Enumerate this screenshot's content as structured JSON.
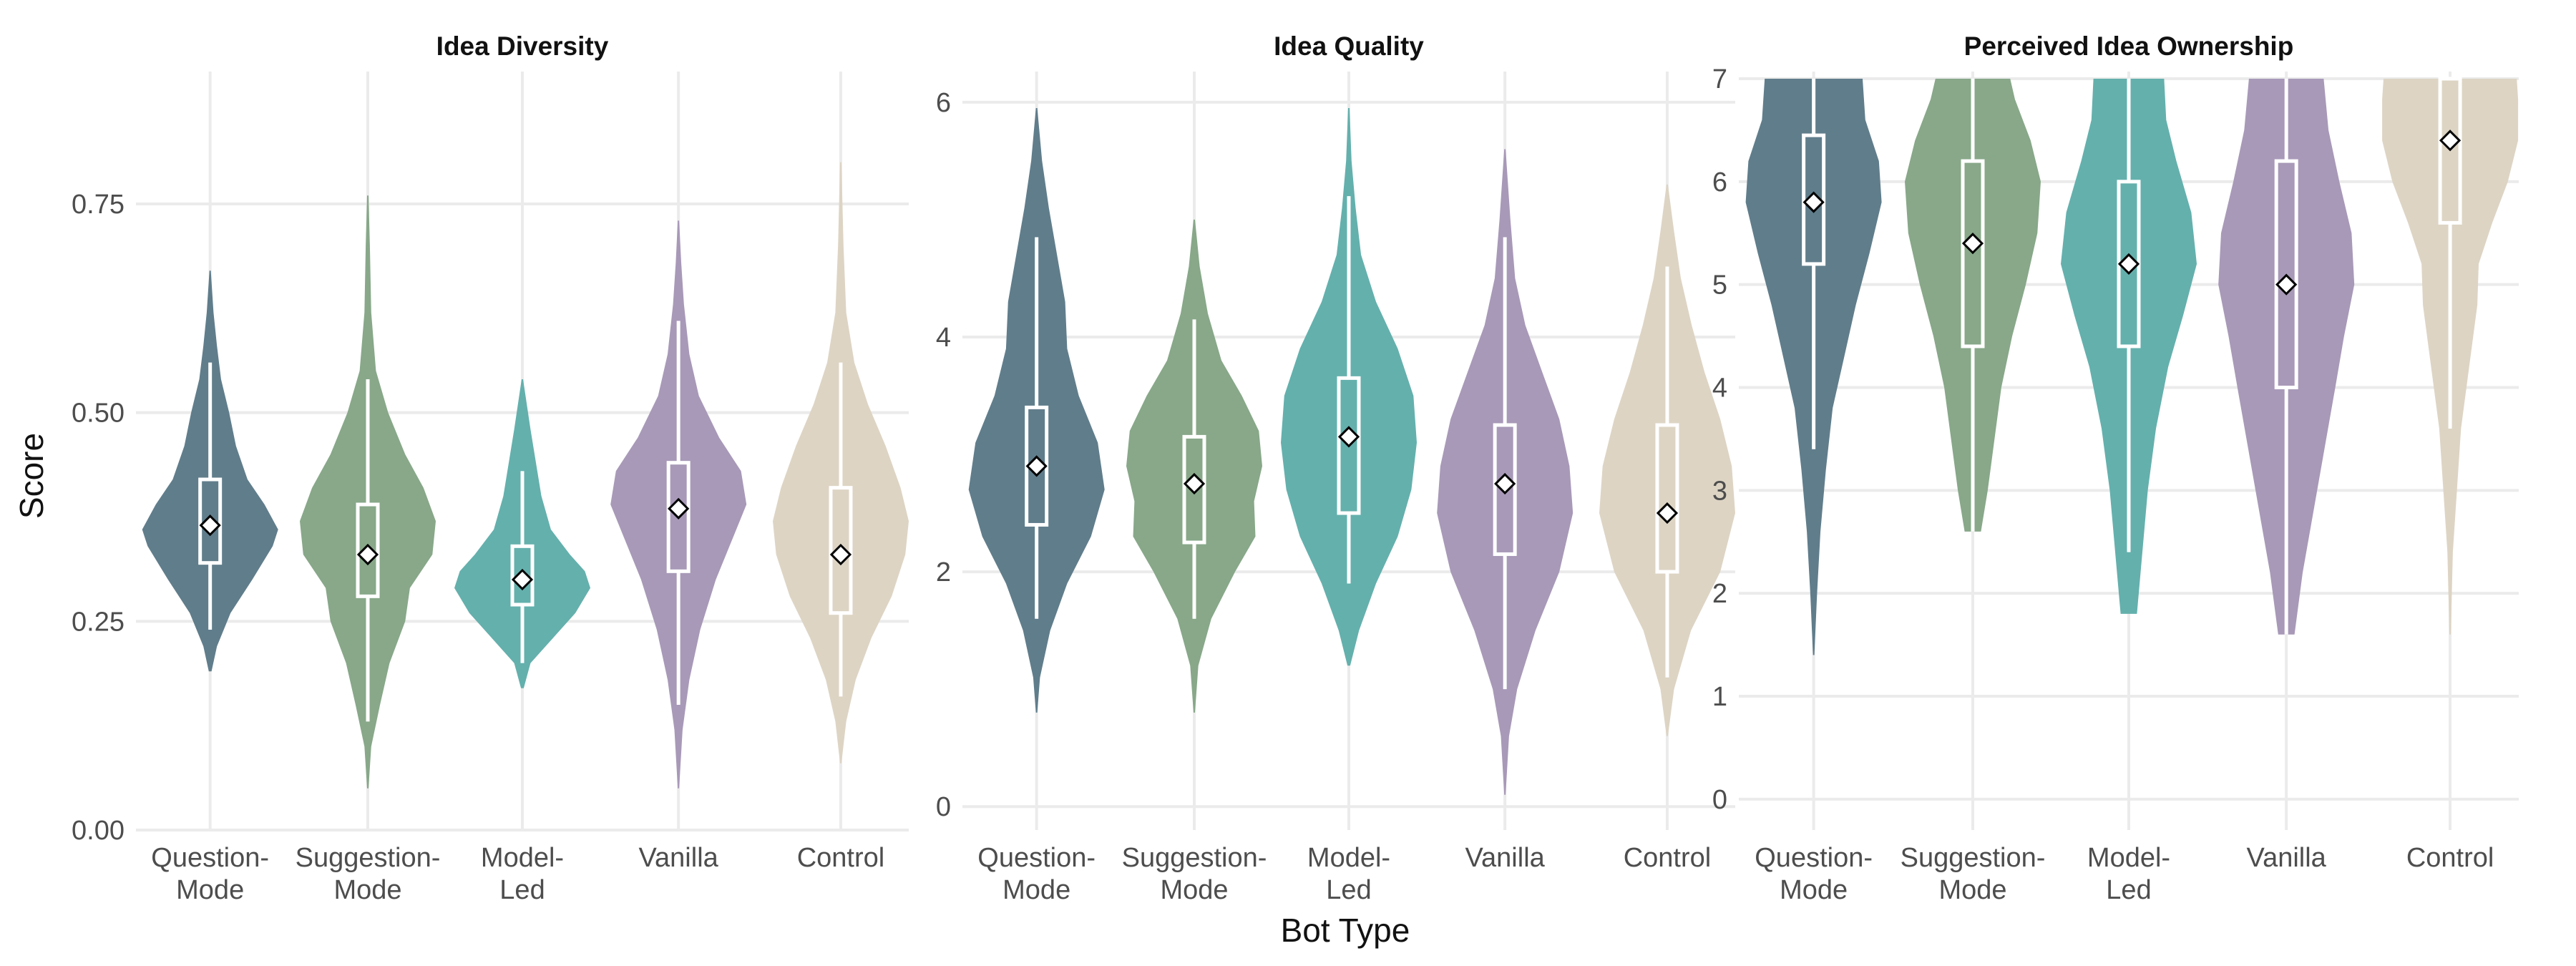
{
  "chart_data": {
    "type": "violin",
    "ylabel": "Score",
    "xlabel": "Bot Type",
    "categories": [
      "Question-\nMode",
      "Suggestion-\nMode",
      "Model-\nLed",
      "Vanilla",
      "Control"
    ],
    "colors": [
      "#607d8b",
      "#88a889",
      "#64b0ad",
      "#a899b8",
      "#ddd4c4"
    ],
    "panels": [
      {
        "title": "Idea Diversity",
        "ylim": [
          0,
          0.9
        ],
        "yticks": [
          0,
          0.25,
          0.5,
          0.75
        ],
        "ytick_labels": [
          "0.00",
          "0.25",
          "0.50",
          "0.75"
        ],
        "groups": [
          {
            "min": 0.24,
            "q1": 0.32,
            "median": 0.36,
            "q3": 0.42,
            "max": 0.56,
            "mean": 0.365,
            "vmin": 0.19,
            "vmax": 0.67,
            "profile": [
              [
                0.19,
                0.02
              ],
              [
                0.22,
                0.1
              ],
              [
                0.26,
                0.3
              ],
              [
                0.3,
                0.62
              ],
              [
                0.34,
                0.92
              ],
              [
                0.36,
                1.0
              ],
              [
                0.39,
                0.8
              ],
              [
                0.42,
                0.55
              ],
              [
                0.46,
                0.38
              ],
              [
                0.5,
                0.28
              ],
              [
                0.54,
                0.16
              ],
              [
                0.58,
                0.1
              ],
              [
                0.62,
                0.05
              ],
              [
                0.67,
                0.01
              ]
            ]
          },
          {
            "min": 0.13,
            "q1": 0.28,
            "median": 0.33,
            "q3": 0.39,
            "max": 0.54,
            "mean": 0.33,
            "vmin": 0.05,
            "vmax": 0.76,
            "profile": [
              [
                0.05,
                0.01
              ],
              [
                0.1,
                0.05
              ],
              [
                0.15,
                0.18
              ],
              [
                0.2,
                0.32
              ],
              [
                0.25,
                0.55
              ],
              [
                0.29,
                0.62
              ],
              [
                0.33,
                0.95
              ],
              [
                0.37,
                1.0
              ],
              [
                0.41,
                0.82
              ],
              [
                0.45,
                0.55
              ],
              [
                0.5,
                0.3
              ],
              [
                0.55,
                0.12
              ],
              [
                0.62,
                0.05
              ],
              [
                0.7,
                0.03
              ],
              [
                0.76,
                0.01
              ]
            ]
          },
          {
            "min": 0.2,
            "q1": 0.27,
            "median": 0.3,
            "q3": 0.34,
            "max": 0.43,
            "mean": 0.3,
            "vmin": 0.17,
            "vmax": 0.54,
            "profile": [
              [
                0.17,
                0.02
              ],
              [
                0.2,
                0.12
              ],
              [
                0.23,
                0.45
              ],
              [
                0.26,
                0.78
              ],
              [
                0.29,
                1.0
              ],
              [
                0.31,
                0.92
              ],
              [
                0.33,
                0.7
              ],
              [
                0.36,
                0.42
              ],
              [
                0.4,
                0.28
              ],
              [
                0.44,
                0.2
              ],
              [
                0.48,
                0.12
              ],
              [
                0.54,
                0.01
              ]
            ]
          },
          {
            "min": 0.15,
            "q1": 0.31,
            "median": 0.38,
            "q3": 0.44,
            "max": 0.61,
            "mean": 0.385,
            "vmin": 0.05,
            "vmax": 0.73,
            "profile": [
              [
                0.05,
                0.01
              ],
              [
                0.12,
                0.06
              ],
              [
                0.18,
                0.16
              ],
              [
                0.24,
                0.32
              ],
              [
                0.3,
                0.55
              ],
              [
                0.35,
                0.8
              ],
              [
                0.39,
                1.0
              ],
              [
                0.43,
                0.92
              ],
              [
                0.47,
                0.6
              ],
              [
                0.52,
                0.3
              ],
              [
                0.57,
                0.16
              ],
              [
                0.63,
                0.08
              ],
              [
                0.68,
                0.04
              ],
              [
                0.73,
                0.01
              ]
            ]
          },
          {
            "min": 0.16,
            "q1": 0.26,
            "median": 0.33,
            "q3": 0.41,
            "max": 0.56,
            "mean": 0.33,
            "vmin": 0.08,
            "vmax": 0.8,
            "profile": [
              [
                0.08,
                0.01
              ],
              [
                0.13,
                0.08
              ],
              [
                0.18,
                0.22
              ],
              [
                0.23,
                0.45
              ],
              [
                0.28,
                0.75
              ],
              [
                0.33,
                0.95
              ],
              [
                0.37,
                1.0
              ],
              [
                0.41,
                0.88
              ],
              [
                0.46,
                0.66
              ],
              [
                0.51,
                0.4
              ],
              [
                0.56,
                0.2
              ],
              [
                0.62,
                0.08
              ],
              [
                0.7,
                0.04
              ],
              [
                0.8,
                0.01
              ]
            ]
          }
        ]
      },
      {
        "title": "Idea Quality",
        "ylim": [
          -0.2,
          6.2
        ],
        "yticks": [
          0,
          2,
          4,
          6
        ],
        "ytick_labels": [
          "0",
          "2",
          "4",
          "6"
        ],
        "groups": [
          {
            "min": 1.6,
            "q1": 2.4,
            "median": 2.8,
            "q3": 3.4,
            "max": 4.85,
            "mean": 2.9,
            "vmin": 0.8,
            "vmax": 5.95,
            "profile": [
              [
                0.8,
                0.01
              ],
              [
                1.1,
                0.05
              ],
              [
                1.5,
                0.2
              ],
              [
                1.9,
                0.45
              ],
              [
                2.3,
                0.8
              ],
              [
                2.7,
                1.0
              ],
              [
                3.1,
                0.9
              ],
              [
                3.5,
                0.62
              ],
              [
                3.9,
                0.45
              ],
              [
                4.3,
                0.42
              ],
              [
                4.7,
                0.3
              ],
              [
                5.1,
                0.18
              ],
              [
                5.5,
                0.08
              ],
              [
                5.95,
                0.01
              ]
            ]
          },
          {
            "min": 1.6,
            "q1": 2.25,
            "median": 2.7,
            "q3": 3.15,
            "max": 4.15,
            "mean": 2.75,
            "vmin": 0.8,
            "vmax": 5.0,
            "profile": [
              [
                0.8,
                0.01
              ],
              [
                1.2,
                0.06
              ],
              [
                1.6,
                0.25
              ],
              [
                2.0,
                0.6
              ],
              [
                2.3,
                0.9
              ],
              [
                2.6,
                0.88
              ],
              [
                2.9,
                1.0
              ],
              [
                3.2,
                0.95
              ],
              [
                3.5,
                0.7
              ],
              [
                3.8,
                0.4
              ],
              [
                4.2,
                0.2
              ],
              [
                4.6,
                0.08
              ],
              [
                5.0,
                0.01
              ]
            ]
          },
          {
            "min": 1.9,
            "q1": 2.5,
            "median": 3.1,
            "q3": 3.65,
            "max": 5.2,
            "mean": 3.15,
            "vmin": 1.2,
            "vmax": 5.95,
            "profile": [
              [
                1.2,
                0.02
              ],
              [
                1.5,
                0.15
              ],
              [
                1.9,
                0.4
              ],
              [
                2.3,
                0.72
              ],
              [
                2.7,
                0.92
              ],
              [
                3.1,
                1.0
              ],
              [
                3.5,
                0.95
              ],
              [
                3.9,
                0.72
              ],
              [
                4.3,
                0.4
              ],
              [
                4.7,
                0.18
              ],
              [
                5.1,
                0.1
              ],
              [
                5.5,
                0.04
              ],
              [
                5.95,
                0.01
              ]
            ]
          },
          {
            "min": 1.0,
            "q1": 2.15,
            "median": 2.75,
            "q3": 3.25,
            "max": 4.85,
            "mean": 2.75,
            "vmin": 0.1,
            "vmax": 5.6,
            "profile": [
              [
                0.1,
                0.01
              ],
              [
                0.6,
                0.06
              ],
              [
                1.0,
                0.18
              ],
              [
                1.5,
                0.45
              ],
              [
                2.0,
                0.8
              ],
              [
                2.5,
                1.0
              ],
              [
                2.9,
                0.95
              ],
              [
                3.3,
                0.8
              ],
              [
                3.7,
                0.55
              ],
              [
                4.1,
                0.3
              ],
              [
                4.5,
                0.15
              ],
              [
                5.0,
                0.08
              ],
              [
                5.6,
                0.01
              ]
            ]
          },
          {
            "min": 1.1,
            "q1": 2.0,
            "median": 2.45,
            "q3": 3.25,
            "max": 4.6,
            "mean": 2.5,
            "vmin": 0.6,
            "vmax": 5.3,
            "profile": [
              [
                0.6,
                0.01
              ],
              [
                1.0,
                0.1
              ],
              [
                1.5,
                0.35
              ],
              [
                2.0,
                0.78
              ],
              [
                2.5,
                1.0
              ],
              [
                2.9,
                0.95
              ],
              [
                3.3,
                0.78
              ],
              [
                3.7,
                0.55
              ],
              [
                4.1,
                0.36
              ],
              [
                4.5,
                0.2
              ],
              [
                4.9,
                0.1
              ],
              [
                5.3,
                0.01
              ]
            ]
          }
        ]
      },
      {
        "title": "Perceived Idea Ownership",
        "ylim": [
          -0.3,
          7.0
        ],
        "yticks": [
          0,
          1,
          2,
          3,
          4,
          5,
          6,
          7
        ],
        "ytick_labels": [
          "0",
          "1",
          "2",
          "3",
          "4",
          "5",
          "6",
          "7"
        ],
        "groups": [
          {
            "min": 3.4,
            "q1": 5.2,
            "median": 6.0,
            "q3": 6.45,
            "max": 7.0,
            "mean": 5.8,
            "vmin": 1.4,
            "vmax": 7.0,
            "profile": [
              [
                1.4,
                0.01
              ],
              [
                2.0,
                0.05
              ],
              [
                2.6,
                0.1
              ],
              [
                3.2,
                0.18
              ],
              [
                3.8,
                0.28
              ],
              [
                4.3,
                0.45
              ],
              [
                4.8,
                0.62
              ],
              [
                5.3,
                0.82
              ],
              [
                5.8,
                1.0
              ],
              [
                6.2,
                0.96
              ],
              [
                6.6,
                0.76
              ],
              [
                7.0,
                0.72
              ]
            ]
          },
          {
            "min": 2.6,
            "q1": 4.4,
            "median": 5.4,
            "q3": 6.2,
            "max": 7.0,
            "mean": 5.4,
            "vmin": 2.6,
            "vmax": 7.0,
            "profile": [
              [
                2.6,
                0.12
              ],
              [
                3.0,
                0.22
              ],
              [
                3.5,
                0.32
              ],
              [
                4.0,
                0.42
              ],
              [
                4.5,
                0.58
              ],
              [
                5.0,
                0.78
              ],
              [
                5.5,
                0.95
              ],
              [
                6.0,
                1.0
              ],
              [
                6.4,
                0.85
              ],
              [
                6.8,
                0.62
              ],
              [
                7.0,
                0.55
              ]
            ]
          },
          {
            "min": 2.4,
            "q1": 4.4,
            "median": 5.2,
            "q3": 6.0,
            "max": 7.0,
            "mean": 5.2,
            "vmin": 1.8,
            "vmax": 7.0,
            "profile": [
              [
                1.8,
                0.12
              ],
              [
                2.4,
                0.2
              ],
              [
                3.0,
                0.28
              ],
              [
                3.6,
                0.4
              ],
              [
                4.2,
                0.58
              ],
              [
                4.7,
                0.8
              ],
              [
                5.2,
                1.0
              ],
              [
                5.7,
                0.92
              ],
              [
                6.2,
                0.7
              ],
              [
                6.6,
                0.55
              ],
              [
                7.0,
                0.52
              ]
            ]
          },
          {
            "min": 1.6,
            "q1": 4.0,
            "median": 5.0,
            "q3": 6.2,
            "max": 7.0,
            "mean": 5.0,
            "vmin": 1.6,
            "vmax": 7.0,
            "profile": [
              [
                1.6,
                0.12
              ],
              [
                2.2,
                0.24
              ],
              [
                2.8,
                0.4
              ],
              [
                3.4,
                0.56
              ],
              [
                4.0,
                0.72
              ],
              [
                4.5,
                0.85
              ],
              [
                5.0,
                1.0
              ],
              [
                5.5,
                0.96
              ],
              [
                6.0,
                0.78
              ],
              [
                6.5,
                0.62
              ],
              [
                7.0,
                0.55
              ]
            ]
          },
          {
            "min": 3.6,
            "q1": 5.6,
            "median": 6.5,
            "q3": 7.0,
            "max": 7.0,
            "mean": 6.4,
            "vmin": 1.6,
            "vmax": 7.0,
            "profile": [
              [
                1.6,
                0.01
              ],
              [
                2.4,
                0.04
              ],
              [
                3.0,
                0.1
              ],
              [
                3.6,
                0.16
              ],
              [
                4.2,
                0.28
              ],
              [
                4.8,
                0.4
              ],
              [
                5.2,
                0.42
              ],
              [
                5.6,
                0.62
              ],
              [
                6.0,
                0.85
              ],
              [
                6.4,
                1.0
              ],
              [
                6.8,
                1.0
              ],
              [
                7.0,
                0.98
              ]
            ]
          }
        ]
      }
    ]
  }
}
